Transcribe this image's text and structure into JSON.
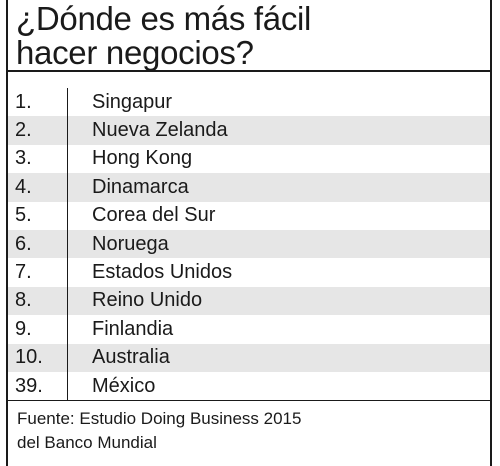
{
  "title": {
    "line1": "¿Dónde es más fácil",
    "line2": "hacer negocios?"
  },
  "rows": [
    {
      "rank": "1.",
      "country": "Singapur"
    },
    {
      "rank": "2.",
      "country": "Nueva Zelanda"
    },
    {
      "rank": "3.",
      "country": "Hong Kong"
    },
    {
      "rank": "4.",
      "country": "Dinamarca"
    },
    {
      "rank": "5.",
      "country": "Corea del Sur"
    },
    {
      "rank": "6.",
      "country": "Noruega"
    },
    {
      "rank": "7.",
      "country": "Estados Unidos"
    },
    {
      "rank": "8.",
      "country": "Reino Unido"
    },
    {
      "rank": "9.",
      "country": "Finlandia"
    },
    {
      "rank": "10.",
      "country": "Australia"
    },
    {
      "rank": "39.",
      "country": "México"
    }
  ],
  "source": {
    "line1": "Fuente: Estudio Doing Business 2015",
    "line2": "del Banco Mundial"
  },
  "colors": {
    "text": "#1a1a1a",
    "shaded_row": "#e6e6e6",
    "background": "#ffffff"
  }
}
